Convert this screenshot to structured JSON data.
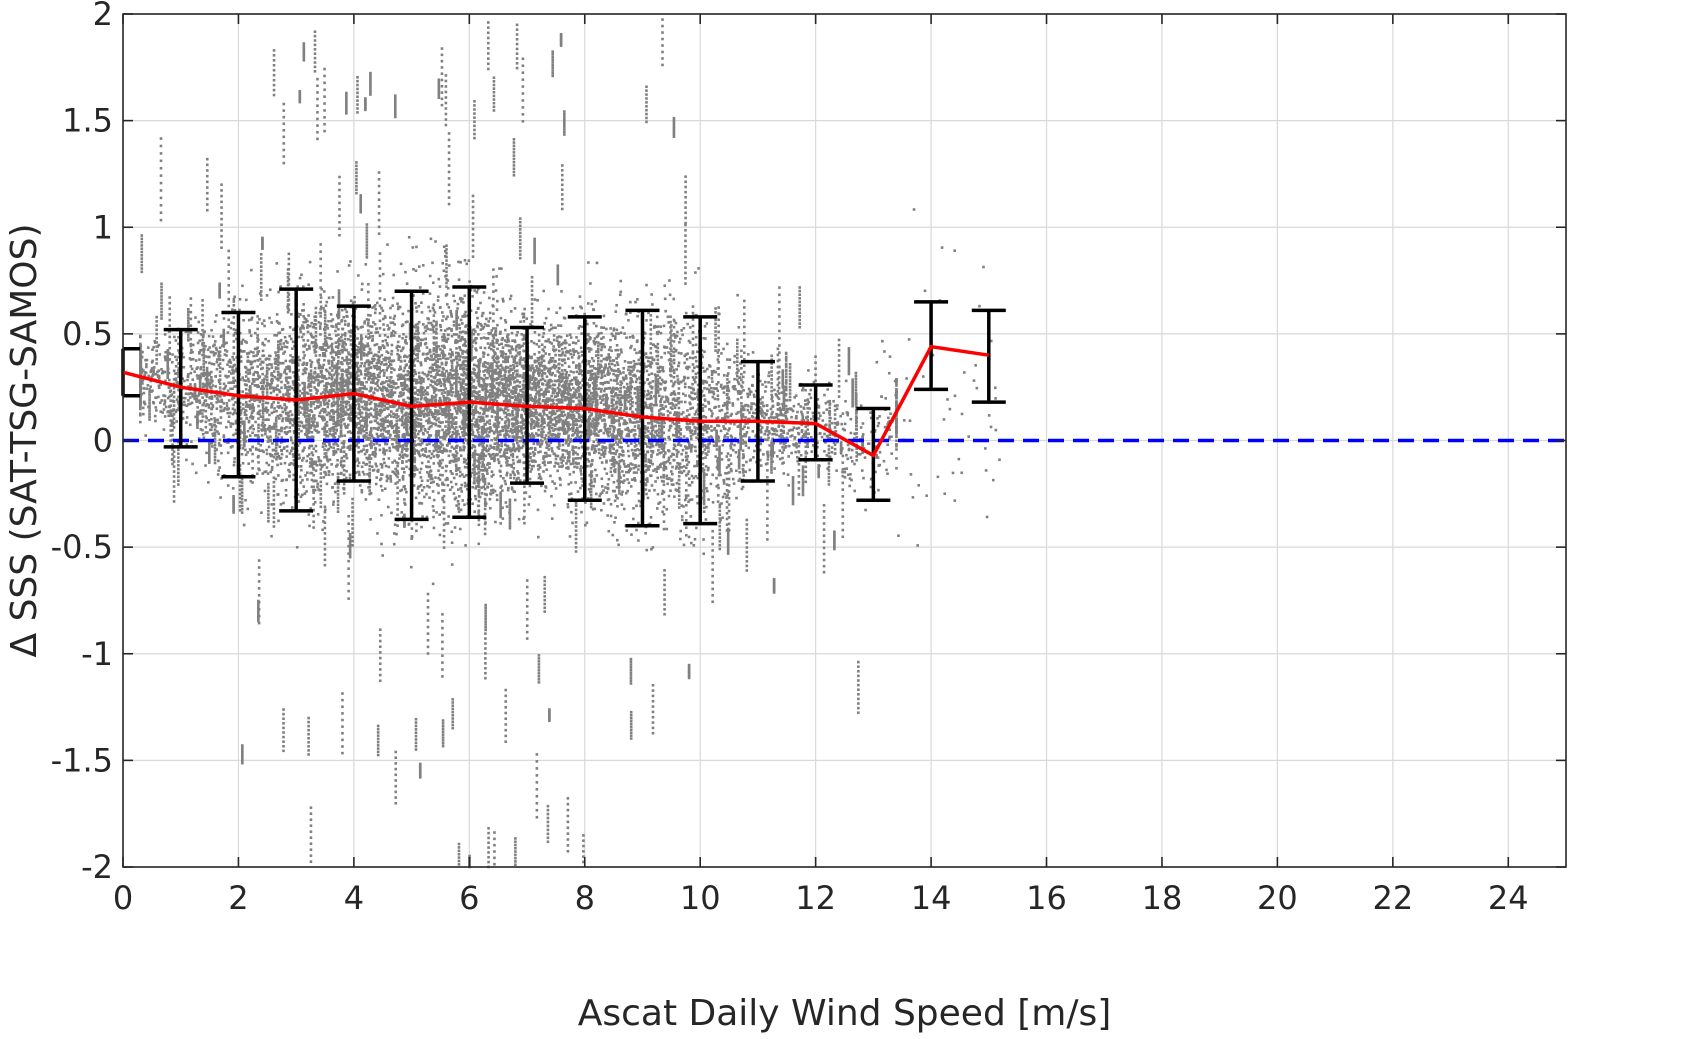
{
  "chart_data": {
    "type": "scatter",
    "xlabel": "Ascat Daily Wind Speed [m/s]",
    "ylabel": "Δ SSS (SAT-TSG-SAMOS)",
    "xlim": [
      0,
      25
    ],
    "ylim": [
      -2,
      2
    ],
    "x_ticks": [
      0,
      2,
      4,
      6,
      8,
      10,
      12,
      14,
      16,
      18,
      20,
      22,
      24
    ],
    "y_ticks": [
      -2,
      -1.5,
      -1,
      -0.5,
      0,
      0.5,
      1,
      1.5,
      2
    ],
    "grid": true,
    "colors": {
      "scatter": "#808080",
      "mean_line": "#ff0000",
      "error_bars": "#000000",
      "zero_line": "#0000ff"
    },
    "binned_mean": {
      "x": [
        0,
        1,
        2,
        3,
        4,
        5,
        6,
        7,
        8,
        9,
        10,
        11,
        12,
        13,
        14,
        15
      ],
      "mean": [
        0.32,
        0.25,
        0.21,
        0.19,
        0.22,
        0.16,
        0.18,
        0.16,
        0.15,
        0.11,
        0.09,
        0.09,
        0.08,
        -0.07,
        0.44,
        0.4
      ],
      "lower": [
        0.21,
        -0.03,
        -0.17,
        -0.33,
        -0.19,
        -0.37,
        -0.36,
        -0.2,
        -0.28,
        -0.4,
        -0.39,
        -0.19,
        -0.09,
        -0.28,
        0.24,
        0.18
      ],
      "upper": [
        0.43,
        0.52,
        0.6,
        0.71,
        0.63,
        0.7,
        0.72,
        0.53,
        0.58,
        0.61,
        0.58,
        0.37,
        0.26,
        0.15,
        0.65,
        0.61
      ]
    },
    "reference_line": {
      "y": 0,
      "style": "dashed"
    },
    "scatter_density": {
      "x_range": [
        0.3,
        15
      ],
      "core_y_range": [
        -0.5,
        0.8
      ],
      "outlier_y_range": [
        -2,
        2
      ]
    }
  }
}
